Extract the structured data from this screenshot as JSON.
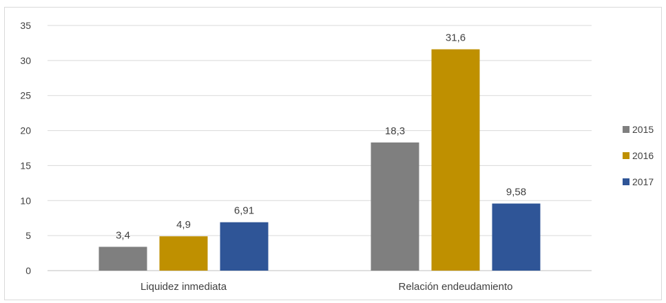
{
  "chart_data": {
    "type": "bar",
    "categories": [
      "Liquidez inmediata",
      "Relación endeudamiento"
    ],
    "series": [
      {
        "name": "2015",
        "values": [
          3.4,
          18.3
        ],
        "labels": [
          "3,4",
          "18,3"
        ],
        "color": "#7f7f7f"
      },
      {
        "name": "2016",
        "values": [
          4.9,
          31.6
        ],
        "labels": [
          "4,9",
          "31,6"
        ],
        "color": "#bf9000"
      },
      {
        "name": "2017",
        "values": [
          6.91,
          9.58
        ],
        "labels": [
          "6,91",
          "9,58"
        ],
        "color": "#2f5597"
      }
    ],
    "ylim": [
      0,
      35
    ],
    "yticks": [
      0,
      5,
      10,
      15,
      20,
      25,
      30,
      35
    ],
    "grid": true,
    "legend": "right"
  }
}
